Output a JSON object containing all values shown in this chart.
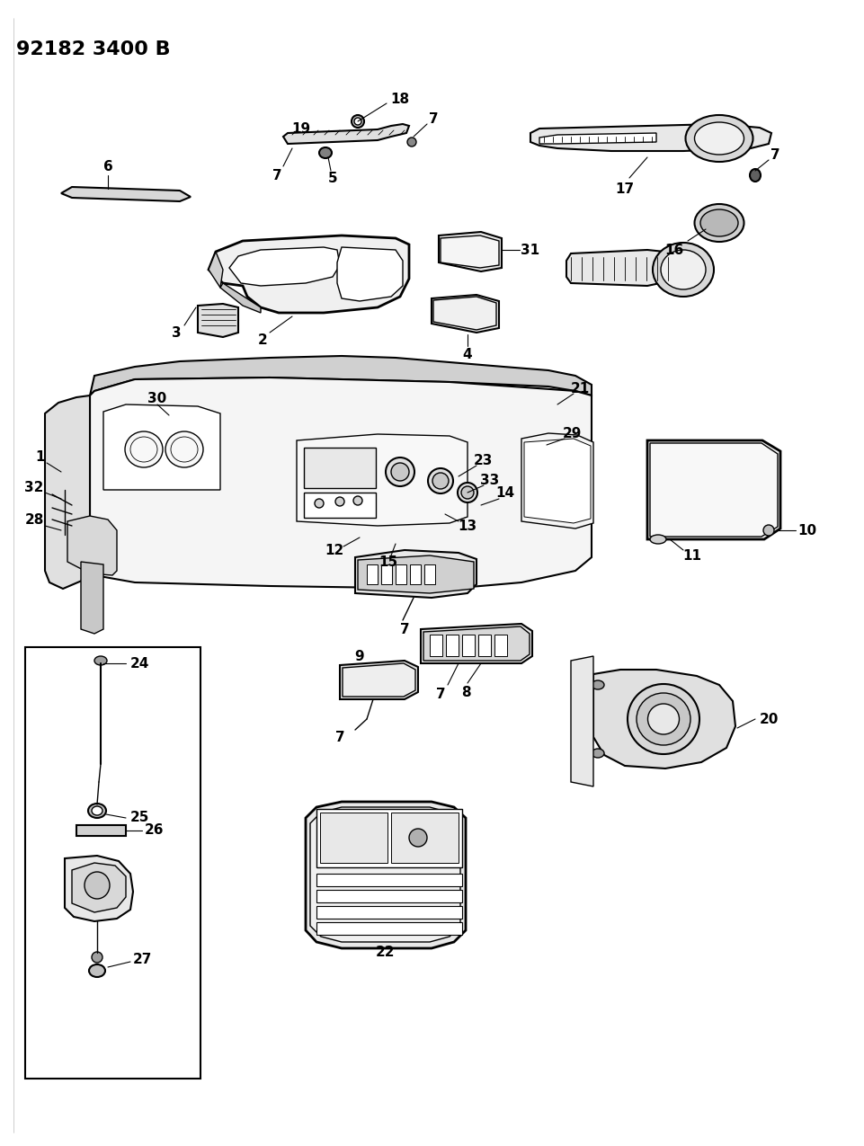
{
  "title": "92182 3400 B",
  "bg_color": "#ffffff",
  "fg_color": "#000000",
  "fig_width": 9.62,
  "fig_height": 12.75,
  "dpi": 100,
  "title_fontsize": 16,
  "label_fontsize": 10
}
